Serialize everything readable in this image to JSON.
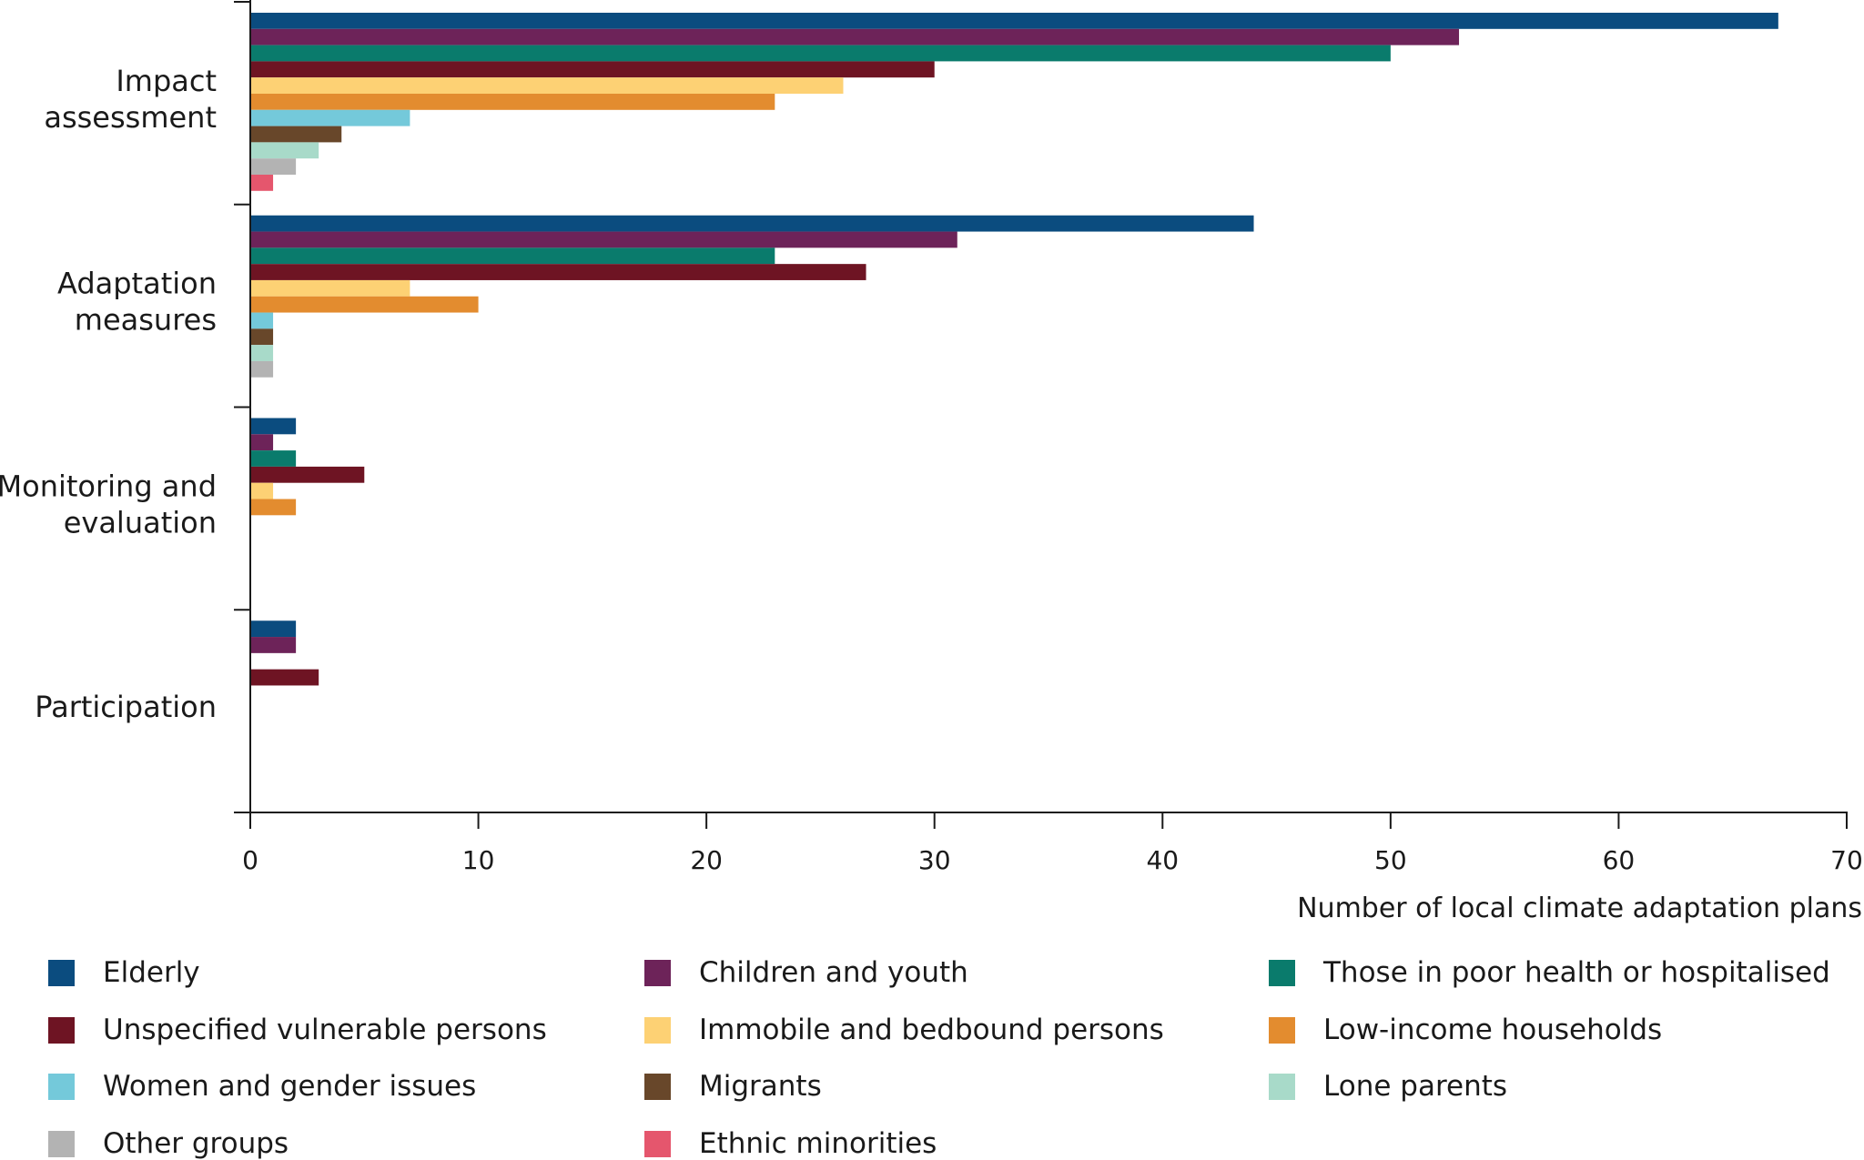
{
  "chart_data": {
    "type": "bar",
    "orientation": "horizontal",
    "title": "",
    "xlabel": "Number of local climate adaptation plans",
    "ylabel": "",
    "xlim": [
      0,
      70
    ],
    "xticks": [
      0,
      10,
      20,
      30,
      40,
      50,
      60,
      70
    ],
    "grid": false,
    "legend_position": "bottom",
    "categories": [
      [
        "Impact",
        "assessment"
      ],
      [
        "Adaptation",
        "measures"
      ],
      [
        "Monitoring and",
        "evaluation"
      ],
      [
        "Participation"
      ]
    ],
    "series": [
      {
        "name": "Elderly",
        "color": "#0b4c7f",
        "values": [
          67,
          44,
          2,
          2
        ]
      },
      {
        "name": "Children and youth",
        "color": "#6d2359",
        "values": [
          53,
          31,
          1,
          2
        ]
      },
      {
        "name": "Those in poor health or hospitalised",
        "color": "#0a7b6c",
        "values": [
          50,
          23,
          2,
          0
        ]
      },
      {
        "name": "Unspecified vulnerable persons",
        "color": "#6e1423",
        "values": [
          30,
          27,
          5,
          3
        ]
      },
      {
        "name": "Immobile and bedbound persons",
        "color": "#fdd174",
        "values": [
          26,
          7,
          1,
          0
        ]
      },
      {
        "name": "Low-income households",
        "color": "#e38c2f",
        "values": [
          23,
          10,
          2,
          0
        ]
      },
      {
        "name": "Women and gender issues",
        "color": "#74c9da",
        "values": [
          7,
          1,
          0,
          0
        ]
      },
      {
        "name": "Migrants",
        "color": "#68472a",
        "values": [
          4,
          1,
          0,
          0
        ]
      },
      {
        "name": "Lone parents",
        "color": "#a8dac9",
        "values": [
          3,
          1,
          0,
          0
        ]
      },
      {
        "name": "Other groups",
        "color": "#b3b3b3",
        "values": [
          2,
          1,
          0,
          0
        ]
      },
      {
        "name": "Ethnic minorities",
        "color": "#e5566d",
        "values": [
          1,
          0,
          0,
          0
        ]
      }
    ],
    "legend_order": [
      "Elderly",
      "Children and youth",
      "Those in poor health or hospitalised",
      "Unspecified vulnerable persons",
      "Immobile and bedbound persons",
      "Low-income households",
      "Women and gender issues",
      "Migrants",
      "Lone parents",
      "Other groups",
      "Ethnic minorities"
    ]
  }
}
